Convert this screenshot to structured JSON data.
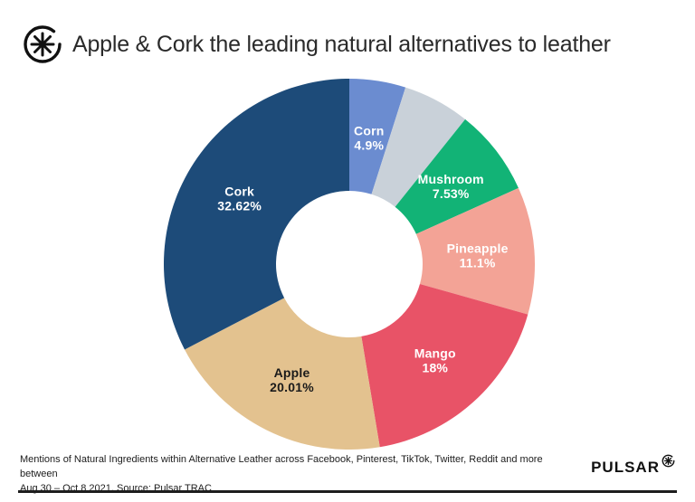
{
  "header": {
    "title": "Apple & Cork the leading natural alternatives to leather",
    "logo_name": "pulsar-star-icon"
  },
  "chart_data": {
    "type": "pie",
    "subtype": "donut",
    "title": "Apple & Cork the leading natural alternatives to leather",
    "start_angle_deg": 0,
    "direction": "clockwise",
    "legend_position": "none",
    "slices": [
      {
        "label": "Corn",
        "value": 4.9,
        "display": "4.9%",
        "color": "#6B8CD0",
        "label_color": "#ffffff",
        "show_label": true
      },
      {
        "label": "unlabeled",
        "value": 5.84,
        "display": "",
        "color": "#C9D1D9",
        "label_color": "#ffffff",
        "show_label": false
      },
      {
        "label": "Mushroom",
        "value": 7.53,
        "display": "7.53%",
        "color": "#12B376",
        "label_color": "#ffffff",
        "show_label": true
      },
      {
        "label": "Pineapple",
        "value": 11.1,
        "display": "11.1%",
        "color": "#F3A396",
        "label_color": "#ffffff",
        "show_label": true
      },
      {
        "label": "Mango",
        "value": 18,
        "display": "18%",
        "color": "#E85367",
        "label_color": "#ffffff",
        "show_label": true
      },
      {
        "label": "Apple",
        "value": 20.01,
        "display": "20.01%",
        "color": "#E3C28F",
        "label_color": "#1A1A1A",
        "show_label": true
      },
      {
        "label": "Cork",
        "value": 32.62,
        "display": "32.62%",
        "color": "#1D4B79",
        "label_color": "#ffffff",
        "show_label": true
      }
    ]
  },
  "footer": {
    "caption_line1": "Mentions of Natural Ingredients within Alternative Leather across Facebook, Pinterest, TikTok, Twitter, Reddit and more between",
    "caption_line2": "Aug 30 – Oct 8 2021, Source: Pulsar TRAC",
    "brand": "PULSAR"
  }
}
